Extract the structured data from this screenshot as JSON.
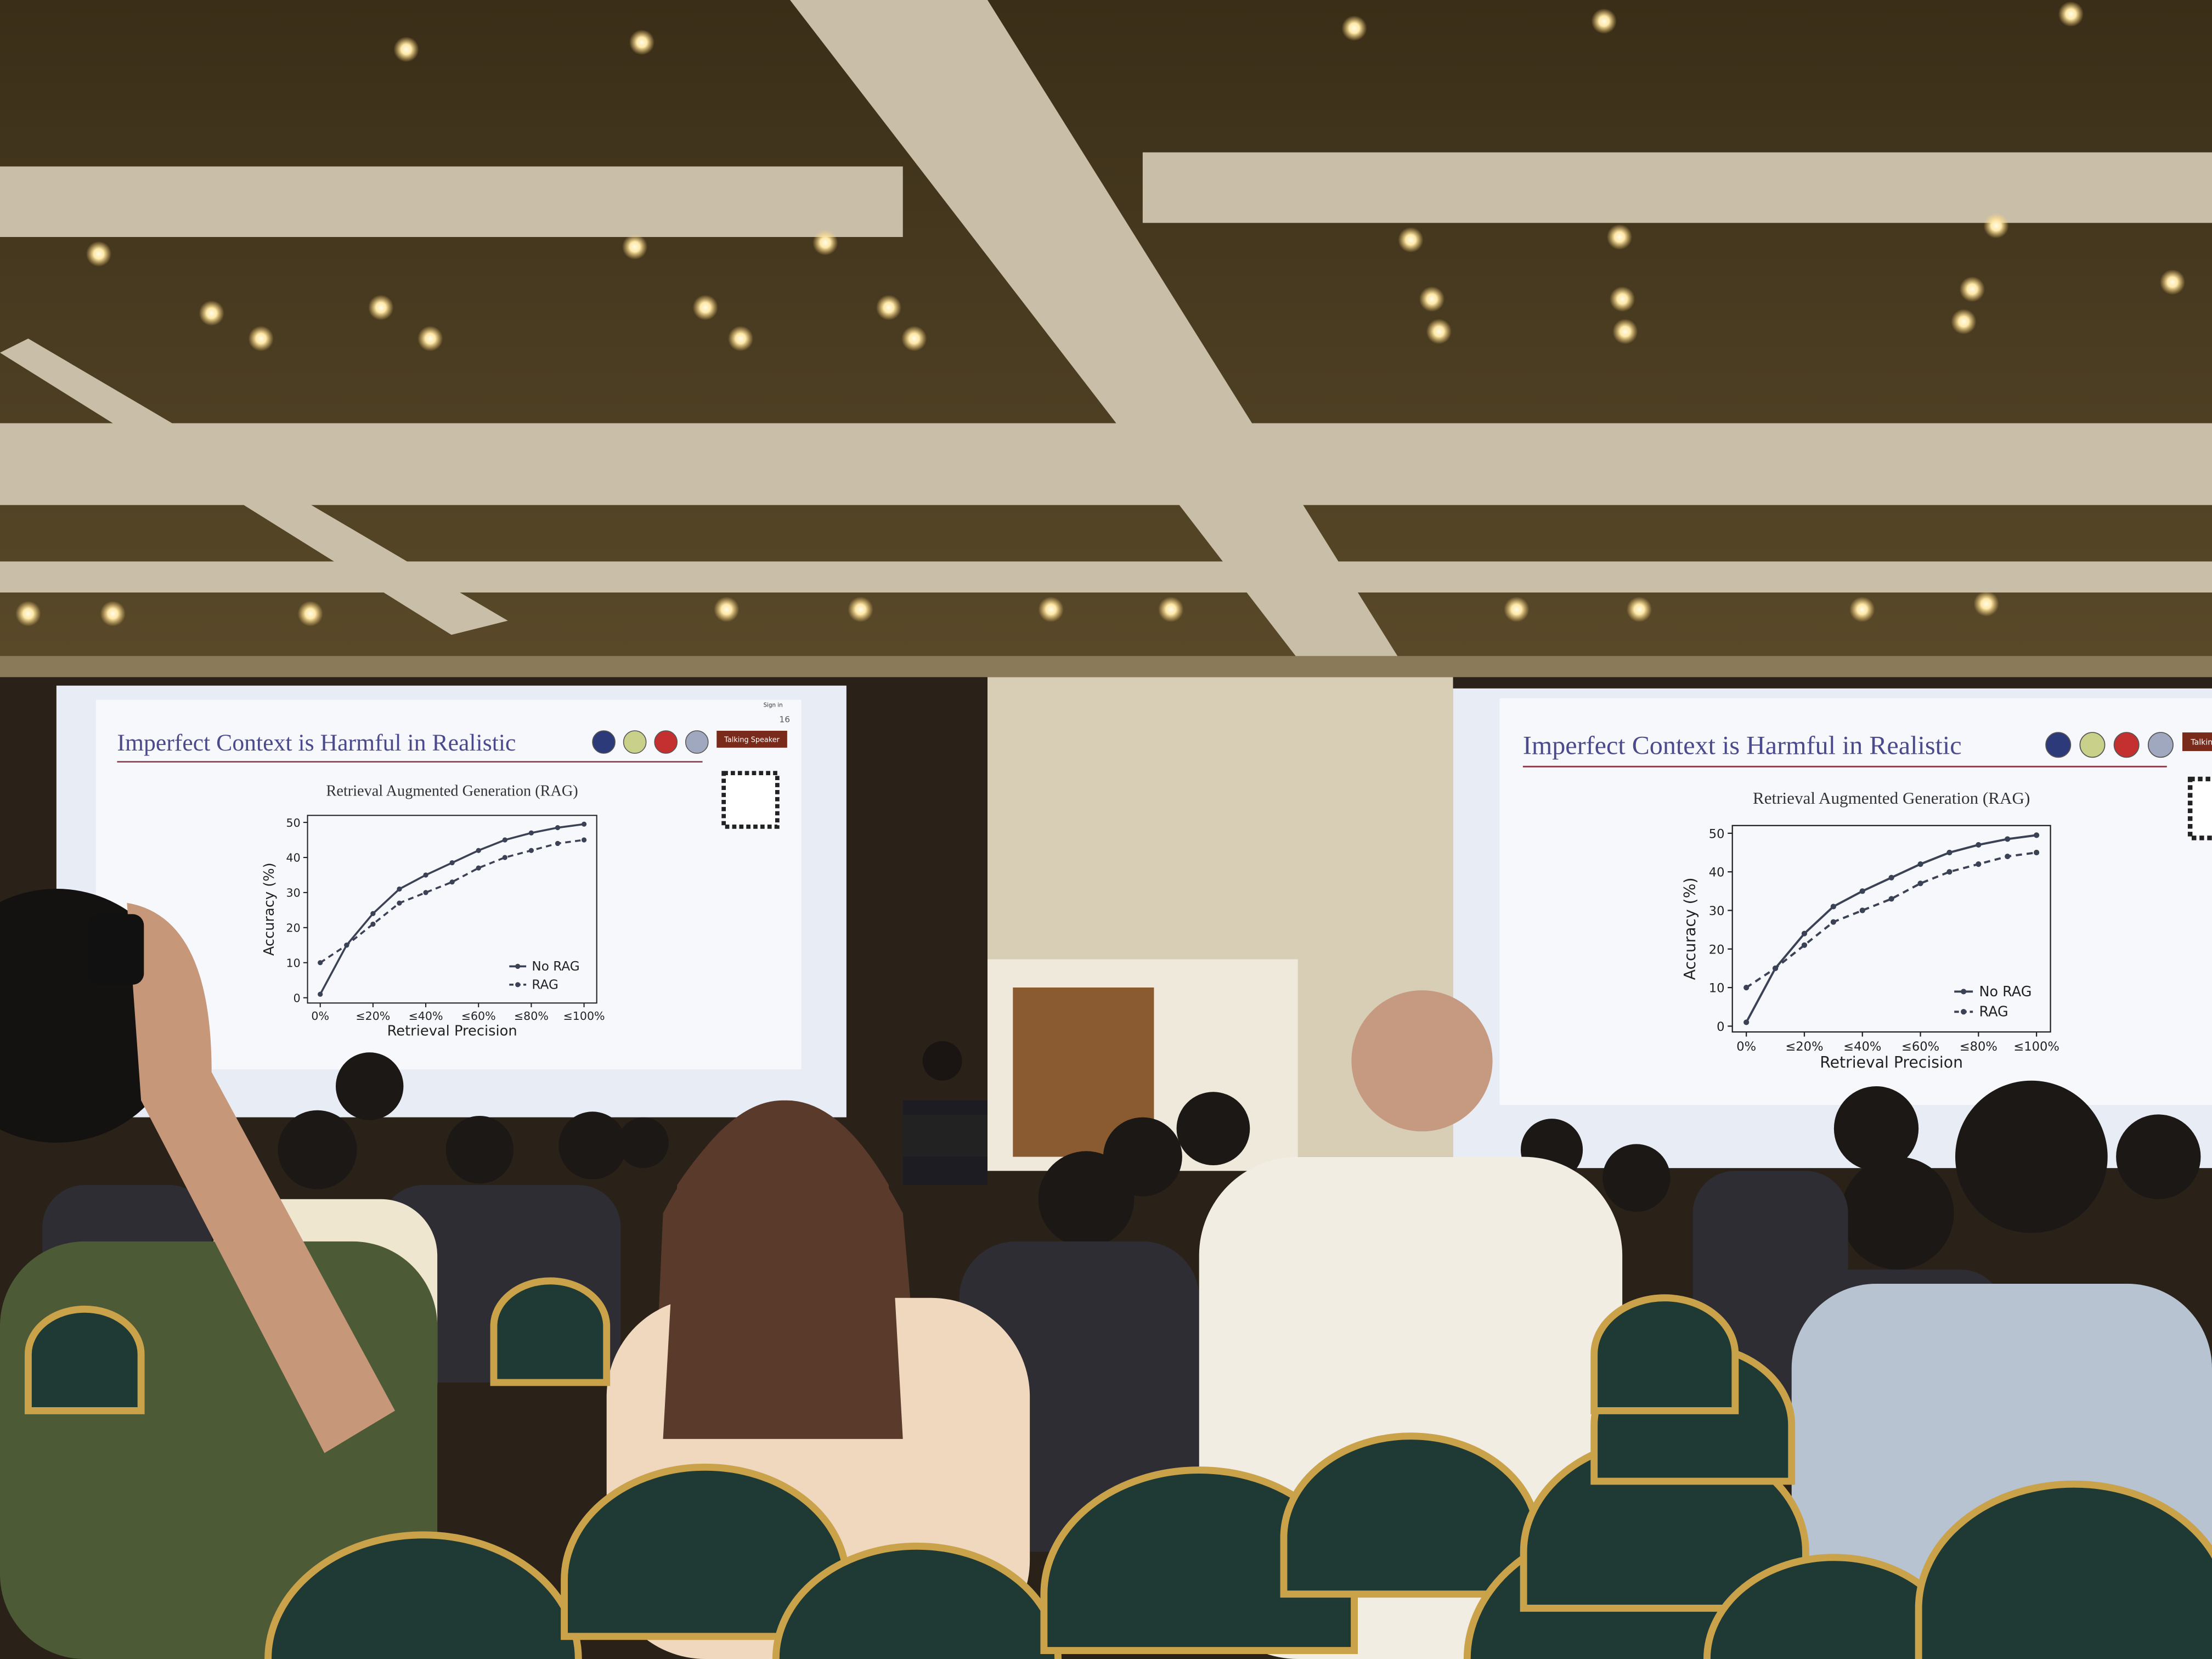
{
  "slide": {
    "title": "Imperfect Context is Harmful in Realistic",
    "page_number": "16",
    "button": "Talking Speaker",
    "sign_in": "Sign in"
  },
  "chart_data": {
    "type": "line",
    "title": "Retrieval Augmented Generation (RAG)",
    "x_label": "Retrieval Precision",
    "y_label": "Accuracy (%)",
    "categories": [
      "0%",
      null,
      "≤20%",
      null,
      "≤40%",
      null,
      "≤60%",
      null,
      "≤80%",
      null,
      "≤100%"
    ],
    "series": [
      {
        "name": "No RAG",
        "color": "#3b4256",
        "style": "solid",
        "values": [
          1,
          15,
          24,
          31,
          35,
          38.5,
          42,
          45,
          47,
          48.5,
          49.5
        ]
      },
      {
        "name": "RAG",
        "color": "#3b4256",
        "style": "dashed",
        "values": [
          10,
          15,
          21,
          27,
          30,
          33,
          37,
          40,
          42,
          44,
          45
        ]
      }
    ],
    "ylim": [
      -1.5,
      52
    ],
    "yticks": [
      0,
      10,
      20,
      30,
      40,
      50
    ],
    "legend": "lower right"
  }
}
